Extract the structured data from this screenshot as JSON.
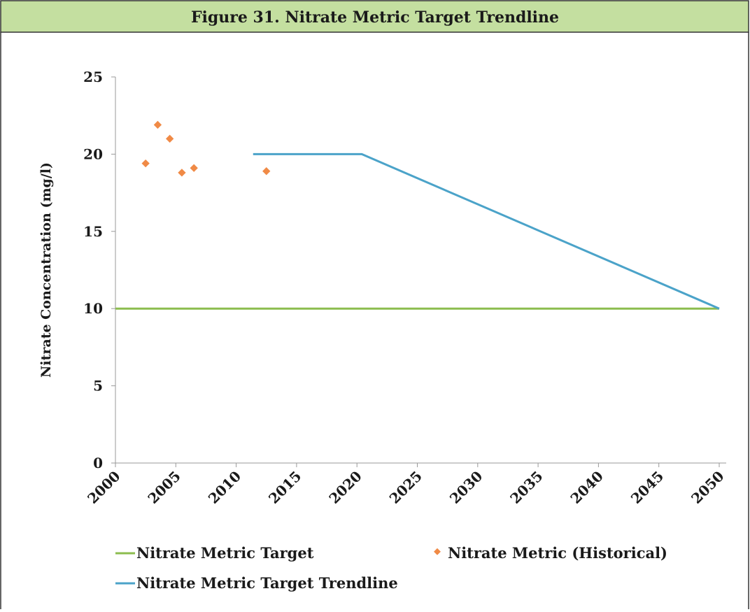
{
  "chart_data": {
    "type": "line",
    "title": "Figure 31.  Nitrate Metric Target Trendline",
    "y_label": "Nitrate Concentration (mg/l)",
    "xlim": [
      2000,
      2050
    ],
    "xticks": [
      2000,
      2005,
      2010,
      2015,
      2020,
      2025,
      2030,
      2035,
      2040,
      2045,
      2050
    ],
    "ylim": [
      0,
      25
    ],
    "yticks": [
      0,
      5,
      10,
      15,
      20,
      25
    ],
    "grid": false,
    "legend": "bottom",
    "series": [
      {
        "name": "Nitrate Metric Target",
        "color": "#8cbd4f",
        "mode": "line",
        "x": [
          2000,
          2050
        ],
        "values": [
          10,
          10
        ]
      },
      {
        "name": "Nitrate Metric (Historical)",
        "color": "#f08a46",
        "mode": "markers",
        "x": [
          2002.5,
          2003.5,
          2004.5,
          2005.5,
          2006.5,
          2012.5
        ],
        "values": [
          19.4,
          21.9,
          21.0,
          18.8,
          19.1,
          18.9
        ]
      },
      {
        "name": "Nitrate Metric Target Trendline",
        "color": "#4ba3c9",
        "mode": "line",
        "x": [
          2011.4,
          2020.4,
          2050
        ],
        "values": [
          20,
          20,
          10
        ]
      }
    ]
  }
}
